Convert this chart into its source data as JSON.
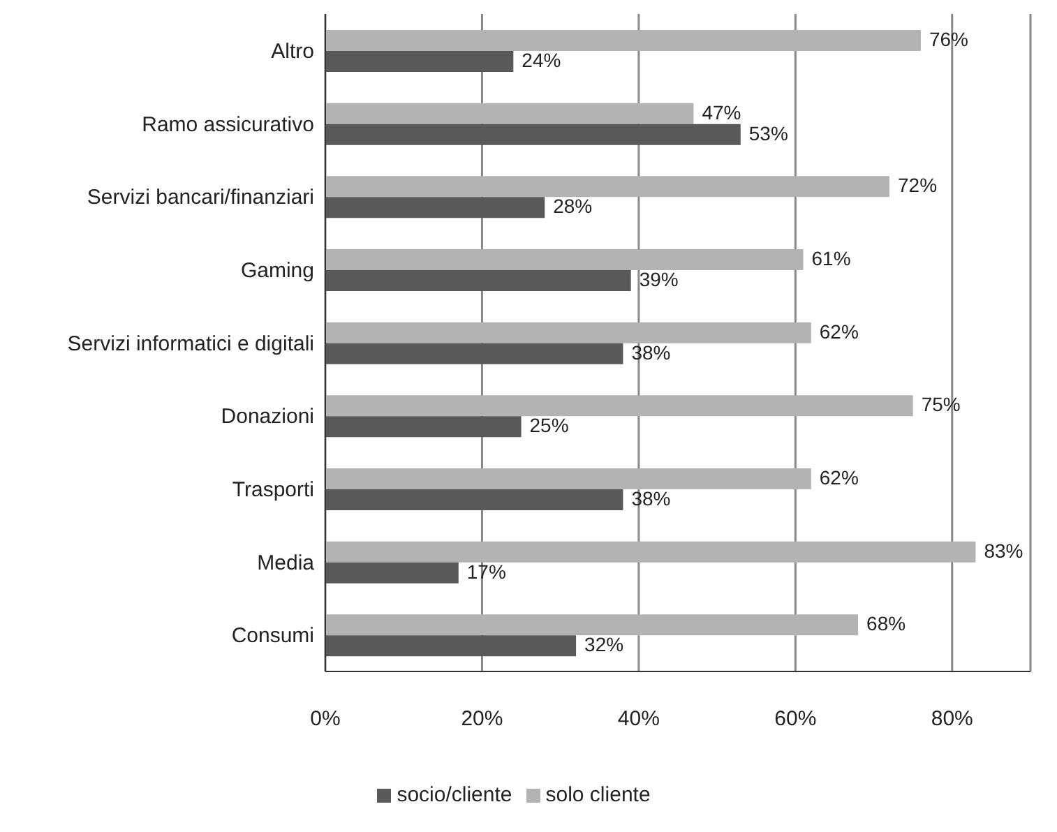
{
  "chart_data": {
    "type": "bar",
    "orientation": "horizontal",
    "categories": [
      "Altro",
      "Ramo assicurativo",
      "Servizi bancari/finanziari",
      "Gaming",
      "Servizi informatici e digitali",
      "Donazioni",
      "Trasporti",
      "Media",
      "Consumi"
    ],
    "series": [
      {
        "name": "solo cliente",
        "color": "#b3b3b3",
        "values": [
          76,
          47,
          72,
          61,
          62,
          75,
          62,
          83,
          68
        ],
        "value_labels": [
          "76%",
          "47%",
          "72%",
          "61%",
          "62%",
          "75%",
          "62%",
          "83%",
          "68%"
        ]
      },
      {
        "name": "socio/cliente",
        "color": "#595959",
        "values": [
          24,
          53,
          28,
          39,
          38,
          25,
          38,
          17,
          32
        ],
        "value_labels": [
          "24%",
          "53%",
          "28%",
          "39%",
          "38%",
          "25%",
          "38%",
          "17%",
          "32%"
        ]
      }
    ],
    "xlim": [
      0,
      90
    ],
    "xticks": [
      {
        "value": 0,
        "label": "0%"
      },
      {
        "value": 20,
        "label": "20%"
      },
      {
        "value": 40,
        "label": "40%"
      },
      {
        "value": 60,
        "label": "60%"
      },
      {
        "value": 80,
        "label": "80%"
      }
    ],
    "grid": "x",
    "legend": "bottom"
  }
}
